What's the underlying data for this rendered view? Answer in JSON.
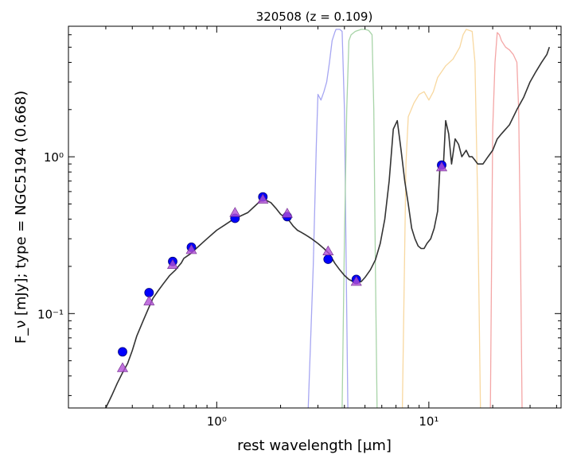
{
  "chart_data": {
    "type": "line",
    "title": "320508 (z = 0.109)",
    "xlabel": "rest wavelength [μm]",
    "ylabel": "F_ν [mJy];  type = NGC5194 (0.668)",
    "xscale": "log",
    "yscale": "log",
    "xlim": [
      0.2,
      42
    ],
    "ylim": [
      0.025,
      6.8
    ],
    "x_ticks": [
      {
        "value": 1,
        "label": "10⁰"
      },
      {
        "value": 10,
        "label": "10¹"
      }
    ],
    "y_ticks": [
      {
        "value": 0.1,
        "label": "10⁻¹"
      },
      {
        "value": 1,
        "label": "10⁰"
      }
    ],
    "series": [
      {
        "role": "model_sed",
        "color": "#333333",
        "x": [
          0.3,
          0.32,
          0.34,
          0.36,
          0.38,
          0.4,
          0.42,
          0.45,
          0.48,
          0.5,
          0.53,
          0.56,
          0.6,
          0.64,
          0.66,
          0.68,
          0.7,
          0.75,
          0.8,
          0.9,
          1.0,
          1.1,
          1.2,
          1.3,
          1.4,
          1.5,
          1.6,
          1.7,
          1.8,
          1.9,
          2.0,
          2.1,
          2.2,
          2.3,
          2.4,
          2.5,
          2.6,
          2.7,
          2.8,
          3.0,
          3.2,
          3.4,
          3.6,
          3.8,
          4.0,
          4.2,
          4.4,
          4.6,
          4.8,
          5.0,
          5.3,
          5.6,
          5.9,
          6.2,
          6.5,
          6.8,
          7.1,
          7.4,
          7.7,
          8.0,
          8.3,
          8.6,
          8.9,
          9.2,
          9.5,
          9.8,
          10.2,
          10.6,
          11.0,
          11.3,
          11.7,
          12.0,
          12.4,
          12.8,
          13.3,
          13.8,
          14.3,
          15.0,
          15.5,
          16.0,
          16.5,
          17.0,
          18.0,
          19.0,
          20.0,
          21.0,
          22.0,
          24.0,
          26.0,
          28.0,
          30.0,
          32.0,
          34.0,
          36.0,
          37.0
        ],
        "y": [
          0.025,
          0.03,
          0.036,
          0.042,
          0.048,
          0.058,
          0.072,
          0.09,
          0.11,
          0.125,
          0.14,
          0.155,
          0.175,
          0.19,
          0.2,
          0.21,
          0.225,
          0.24,
          0.26,
          0.3,
          0.34,
          0.37,
          0.4,
          0.42,
          0.44,
          0.48,
          0.52,
          0.53,
          0.51,
          0.47,
          0.43,
          0.41,
          0.39,
          0.36,
          0.34,
          0.33,
          0.32,
          0.31,
          0.3,
          0.28,
          0.26,
          0.24,
          0.21,
          0.19,
          0.175,
          0.165,
          0.16,
          0.158,
          0.16,
          0.17,
          0.19,
          0.22,
          0.28,
          0.4,
          0.7,
          1.5,
          1.7,
          1.1,
          0.7,
          0.5,
          0.35,
          0.3,
          0.27,
          0.26,
          0.26,
          0.28,
          0.3,
          0.35,
          0.45,
          0.9,
          0.85,
          1.7,
          1.4,
          0.9,
          1.3,
          1.2,
          1.0,
          1.1,
          1.0,
          1.0,
          0.95,
          0.9,
          0.9,
          1.0,
          1.1,
          1.3,
          1.4,
          1.6,
          2.0,
          2.4,
          3.0,
          3.5,
          4.0,
          4.5,
          5.0
        ]
      },
      {
        "role": "filter_curve",
        "color": "#a6a6f2",
        "x": [
          2.7,
          2.85,
          2.95,
          3.0,
          3.1,
          3.2,
          3.3,
          3.4,
          3.5,
          3.6,
          3.65,
          3.7,
          3.8,
          3.9,
          4.0,
          4.1,
          4.15
        ],
        "y": [
          0.025,
          0.2,
          1.2,
          2.5,
          2.3,
          2.6,
          3.0,
          4.0,
          5.5,
          6.2,
          6.5,
          6.5,
          6.5,
          6.3,
          2.0,
          0.1,
          0.025
        ]
      },
      {
        "role": "filter_curve",
        "color": "#a8d4a8",
        "x": [
          3.9,
          4.0,
          4.1,
          4.2,
          4.3,
          4.5,
          4.8,
          5.0,
          5.2,
          5.4,
          5.5,
          5.6,
          5.7
        ],
        "y": [
          0.025,
          0.3,
          2.0,
          5.5,
          6.0,
          6.3,
          6.5,
          6.5,
          6.4,
          6.0,
          2.0,
          0.2,
          0.025
        ]
      },
      {
        "role": "filter_curve",
        "color": "#f8d8a0",
        "x": [
          7.5,
          7.8,
          8.0,
          8.5,
          9.0,
          9.5,
          10.0,
          10.5,
          11.0,
          12.0,
          13.0,
          14.0,
          14.5,
          15.0,
          16.0,
          16.5,
          17.0,
          17.5
        ],
        "y": [
          0.025,
          0.9,
          1.8,
          2.2,
          2.5,
          2.6,
          2.3,
          2.6,
          3.2,
          3.8,
          4.2,
          5.0,
          6.0,
          6.5,
          6.3,
          4.0,
          0.5,
          0.025
        ]
      },
      {
        "role": "filter_curve",
        "color": "#f4a6a6",
        "x": [
          19.5,
          20.0,
          20.5,
          21.0,
          21.5,
          22.0,
          23.0,
          24.0,
          25.0,
          26.0,
          26.5,
          27.0,
          27.5
        ],
        "y": [
          0.025,
          1.5,
          4.0,
          6.2,
          6.0,
          5.5,
          5.0,
          4.8,
          4.5,
          4.0,
          2.0,
          0.3,
          0.025
        ]
      }
    ],
    "observed_points": {
      "color": "#0000ff",
      "x": [
        0.36,
        0.48,
        0.62,
        0.76,
        1.22,
        1.65,
        2.15,
        3.35,
        4.55,
        11.5
      ],
      "y": [
        0.057,
        0.136,
        0.215,
        0.265,
        0.405,
        0.555,
        0.415,
        0.222,
        0.165,
        0.885
      ]
    },
    "model_points": {
      "color": "#b14fd6",
      "x": [
        0.36,
        0.48,
        0.62,
        0.76,
        1.22,
        1.65,
        2.15,
        3.35,
        4.55,
        11.5
      ],
      "y": [
        0.045,
        0.12,
        0.205,
        0.255,
        0.44,
        0.535,
        0.435,
        0.25,
        0.16,
        0.86
      ]
    }
  }
}
